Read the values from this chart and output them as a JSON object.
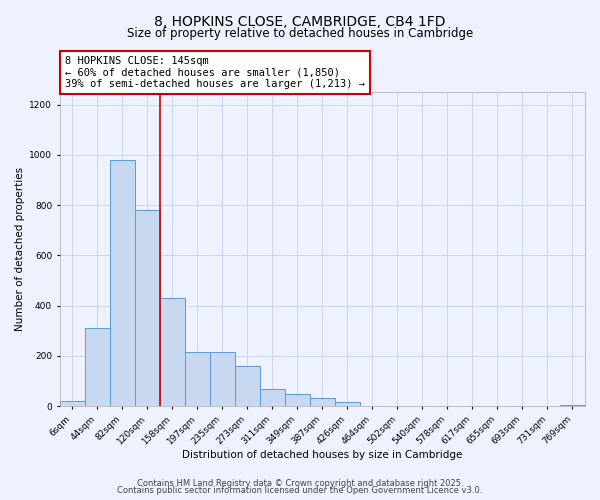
{
  "title": "8, HOPKINS CLOSE, CAMBRIDGE, CB4 1FD",
  "subtitle": "Size of property relative to detached houses in Cambridge",
  "xlabel": "Distribution of detached houses by size in Cambridge",
  "ylabel": "Number of detached properties",
  "bar_labels": [
    "6sqm",
    "44sqm",
    "82sqm",
    "120sqm",
    "158sqm",
    "197sqm",
    "235sqm",
    "273sqm",
    "311sqm",
    "349sqm",
    "387sqm",
    "426sqm",
    "464sqm",
    "502sqm",
    "540sqm",
    "578sqm",
    "617sqm",
    "655sqm",
    "693sqm",
    "731sqm",
    "769sqm"
  ],
  "bar_values": [
    20,
    310,
    980,
    780,
    430,
    215,
    215,
    160,
    70,
    48,
    33,
    15,
    0,
    0,
    0,
    0,
    0,
    0,
    0,
    0,
    5
  ],
  "bar_color": "#c8d8f0",
  "bar_edge_color": "#5b9bd5",
  "vline_x": 3.5,
  "vline_color": "#cc0000",
  "annotation_line1": "8 HOPKINS CLOSE: 145sqm",
  "annotation_line2": "← 60% of detached houses are smaller (1,850)",
  "annotation_line3": "39% of semi-detached houses are larger (1,213) →",
  "annotation_box_color": "#cc0000",
  "annotation_box_facecolor": "white",
  "ylim": [
    0,
    1250
  ],
  "yticks": [
    0,
    200,
    400,
    600,
    800,
    1000,
    1200
  ],
  "grid_color": "#c8d8f0",
  "background_color": "#eef2ff",
  "footer_line1": "Contains HM Land Registry data © Crown copyright and database right 2025.",
  "footer_line2": "Contains public sector information licensed under the Open Government Licence v3.0.",
  "title_fontsize": 10,
  "subtitle_fontsize": 8.5,
  "axis_label_fontsize": 7.5,
  "tick_fontsize": 6.5,
  "annotation_fontsize": 7.5,
  "footer_fontsize": 6
}
